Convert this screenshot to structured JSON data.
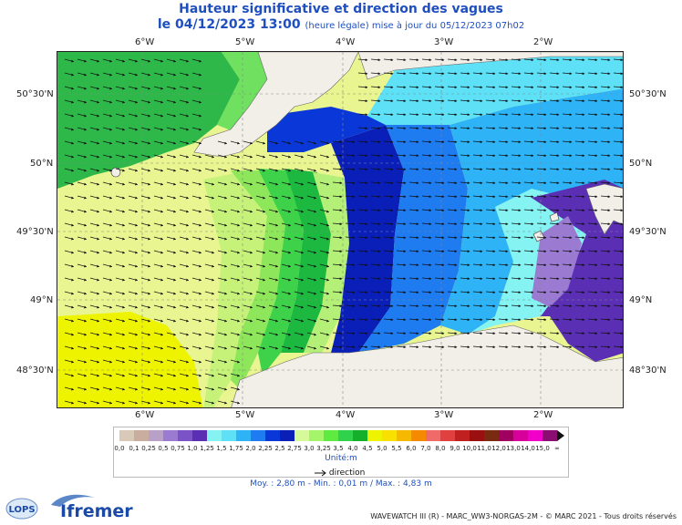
{
  "title": "Hauteur significative et direction des vagues",
  "subtitle": {
    "date": "le 04/12/2023 13:00",
    "note": "(heure légale) mise à jour du 05/12/2023 07h02"
  },
  "axes": {
    "lon_labels": [
      "6°W",
      "5°W",
      "4°W",
      "3°W",
      "2°W"
    ],
    "lat_labels": [
      "50°30'N",
      "50°N",
      "49°30'N",
      "49°N",
      "48°30'N"
    ]
  },
  "legend": {
    "values": [
      "0,0",
      "0,1",
      "0,25",
      "0,5",
      "0,75",
      "1,0",
      "1,25",
      "1,5",
      "1,75",
      "2,0",
      "2,25",
      "2,5",
      "2,75",
      "3,0",
      "3,25",
      "3,5",
      "4,0",
      "4,5",
      "5,0",
      "5,5",
      "6,0",
      "7,0",
      "8,0",
      "9,0",
      "10,0",
      "11,0",
      "12,0",
      "13,0",
      "14,0",
      "15,0",
      "∞"
    ],
    "colors": [
      "#d8c9b8",
      "#c9aea0",
      "#b9a0c7",
      "#9b7ad2",
      "#7b53c6",
      "#5a2fb4",
      "#86f3f3",
      "#5ee1f6",
      "#2eb3f6",
      "#1e7bf0",
      "#0a38d8",
      "#0a1fb8",
      "#d6f99a",
      "#a4f56a",
      "#5eea40",
      "#2fd24a",
      "#14b02a",
      "#eef400",
      "#f8e000",
      "#f6b800",
      "#f58a00",
      "#f06a6a",
      "#e04040",
      "#c02020",
      "#9a1010",
      "#7a2a10",
      "#a00060",
      "#d8009a",
      "#f000c8",
      "#8a0e72"
    ],
    "unit": "Unité:m",
    "direction_label": "direction"
  },
  "stats": "Moy. : 2,80 m   -   Min. : 0,01 m / Max. : 4,83 m",
  "footer": "WAVEWATCH III (R) - MARC_WW3-NORGAS-2M - © MARC 2021 - Tous droits réservés",
  "logos": {
    "lops": "LOPS",
    "ifremer": "Ifremer"
  }
}
